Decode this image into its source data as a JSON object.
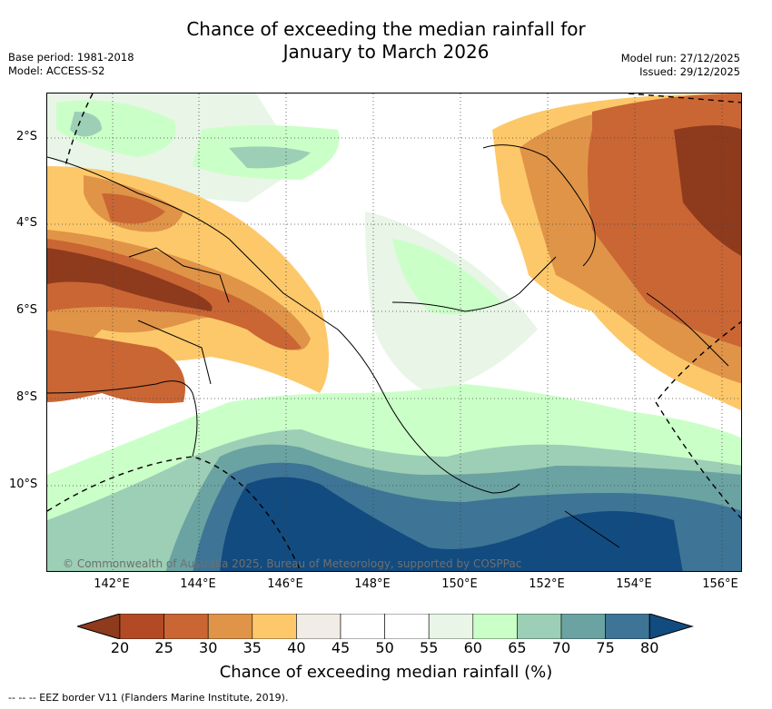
{
  "title": {
    "line1": "Chance of exceeding the median rainfall for",
    "line2": "January to March 2026"
  },
  "meta": {
    "base_period": "Base period: 1981-2018",
    "model": "Model: ACCESS-S2",
    "model_run": "Model run: 27/12/2025",
    "issued": "Issued: 29/12/2025"
  },
  "axes": {
    "lat_labels": [
      "2°S",
      "4°S",
      "6°S",
      "8°S",
      "10°S"
    ],
    "lon_labels": [
      "142°E",
      "144°E",
      "146°E",
      "148°E",
      "150°E",
      "152°E",
      "154°E",
      "156°E"
    ]
  },
  "copyright": "© Commonwealth of Australia 2025, Bureau of Meteorology, supported by COSPPac",
  "colorbar": {
    "label": "Chance of exceeding median rainfall (%)",
    "ticks": [
      "20",
      "25",
      "30",
      "35",
      "40",
      "45",
      "50",
      "55",
      "60",
      "65",
      "70",
      "75",
      "80"
    ],
    "colors": [
      "#8e3a1d",
      "#b24b25",
      "#c96634",
      "#e09448",
      "#fdc86a",
      "#f1ece5",
      "#ffffff",
      "#ffffff",
      "#e8f5e7",
      "#cbffc8",
      "#9ccfb5",
      "#6ba3a3",
      "#3e7495",
      "#124b7f"
    ]
  },
  "legend": "-- -- -- EEZ border V11 (Flanders Marine Institute, 2019)."
}
